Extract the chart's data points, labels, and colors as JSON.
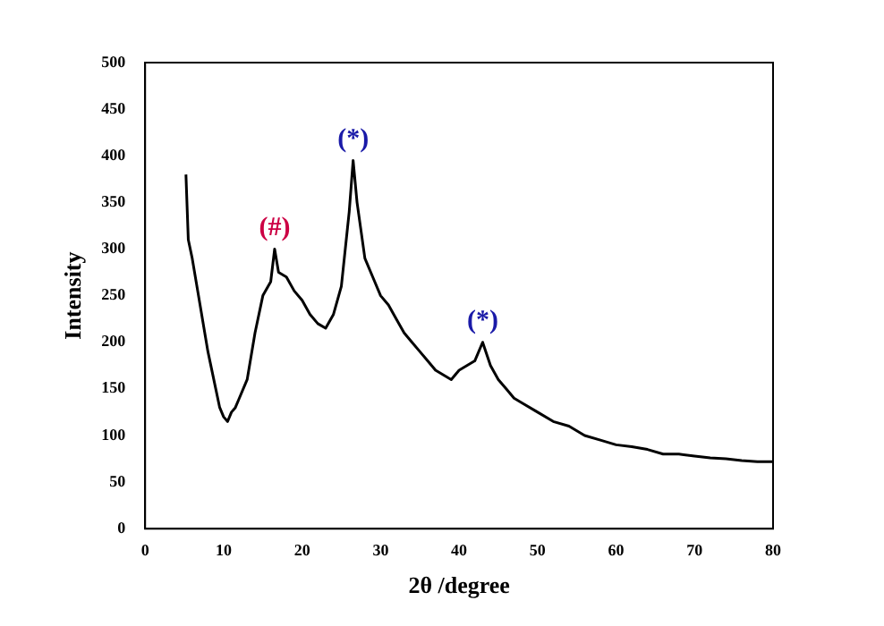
{
  "chart_data": {
    "type": "line",
    "xlabel": "2θ /degree",
    "ylabel": "Intensity",
    "series": [
      {
        "color": "#000000",
        "x": [
          5.2,
          5.5,
          6,
          7,
          8,
          9,
          9.5,
          10,
          10.5,
          11,
          11.5,
          12,
          13,
          14,
          15,
          16,
          16.5,
          17,
          18,
          19,
          20,
          21,
          22,
          23,
          24,
          25,
          26,
          26.5,
          27,
          27.5,
          28,
          29,
          30,
          31,
          32,
          33,
          34,
          35,
          36,
          37,
          38,
          39,
          40,
          41,
          42,
          43,
          44,
          45,
          46,
          47,
          48,
          50,
          52,
          54,
          56,
          58,
          60,
          62,
          64,
          66,
          68,
          70,
          72,
          74,
          76,
          78,
          80
        ],
        "values": [
          380,
          310,
          290,
          240,
          190,
          150,
          130,
          120,
          115,
          125,
          130,
          140,
          160,
          210,
          250,
          265,
          300,
          275,
          270,
          255,
          245,
          230,
          220,
          215,
          230,
          260,
          340,
          395,
          350,
          320,
          290,
          270,
          250,
          240,
          225,
          210,
          200,
          190,
          180,
          170,
          165,
          160,
          170,
          175,
          180,
          200,
          175,
          160,
          150,
          140,
          135,
          125,
          115,
          110,
          100,
          95,
          90,
          88,
          85,
          80,
          80,
          78,
          76,
          75,
          73,
          72,
          72
        ]
      }
    ],
    "xlim": [
      0,
      80
    ],
    "xticks": [
      0,
      10,
      20,
      30,
      40,
      50,
      60,
      70,
      80
    ],
    "ylim": [
      0,
      500
    ],
    "yticks": [
      0,
      50,
      100,
      150,
      200,
      250,
      300,
      350,
      400,
      450,
      500
    ],
    "grid": false,
    "legend": false,
    "marker": "none",
    "line_style": "solid",
    "annotations": [
      {
        "text": "(#)",
        "x": 16.5,
        "y": 300
      },
      {
        "text": "(*)",
        "x": 26.5,
        "y": 395
      },
      {
        "text": "(*)",
        "x": 43,
        "y": 200
      }
    ]
  }
}
